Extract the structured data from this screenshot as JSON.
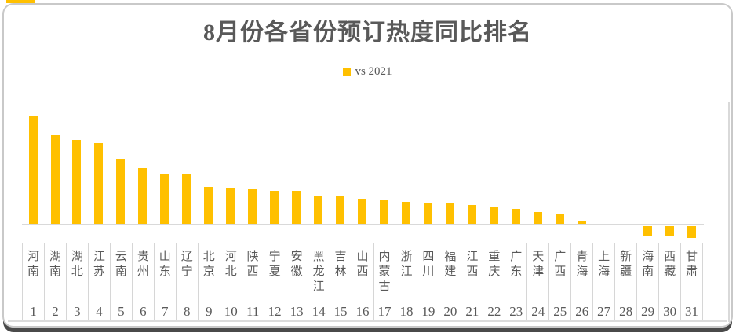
{
  "page": {
    "accent_strip_color": "#FFC000"
  },
  "chart_data": {
    "type": "bar",
    "title": "8月份各省份预订热度同比排名",
    "legend_position": "top-center",
    "grid": false,
    "xlabel": "",
    "ylabel": "",
    "value_units": "relative YoY heat index (no numeric axis shown)",
    "ylim": [
      -20,
      145
    ],
    "categories": [
      "河南",
      "湖南",
      "湖北",
      "江苏",
      "云南",
      "贵州",
      "山东",
      "辽宁",
      "北京",
      "河北",
      "陕西",
      "宁夏",
      "安徽",
      "黑龙江",
      "吉林",
      "山西",
      "内蒙古",
      "浙江",
      "四川",
      "福建",
      "江西",
      "重庆",
      "广东",
      "天津",
      "广西",
      "青海",
      "上海",
      "新疆",
      "海南",
      "西藏",
      "甘肃"
    ],
    "ranks": [
      1,
      2,
      3,
      4,
      5,
      6,
      7,
      8,
      9,
      10,
      11,
      12,
      13,
      14,
      15,
      16,
      17,
      18,
      19,
      20,
      21,
      22,
      23,
      24,
      25,
      26,
      27,
      28,
      29,
      30,
      31
    ],
    "series": [
      {
        "name": "vs 2021",
        "color": "#FFC000",
        "values": [
          137,
          113,
          107,
          103,
          83,
          71,
          63,
          64,
          47,
          45,
          44,
          42,
          42,
          36,
          36,
          32,
          30,
          28,
          26,
          26,
          24,
          21,
          19,
          15,
          13,
          3,
          0,
          0,
          -13,
          -13,
          -15
        ]
      }
    ]
  },
  "colors": {
    "bar": "#FFC000",
    "text": "#595959",
    "grid": "#D9D9D9",
    "card_border": "#C9C9C9",
    "bottom_shadow": "#4A4A4A"
  }
}
